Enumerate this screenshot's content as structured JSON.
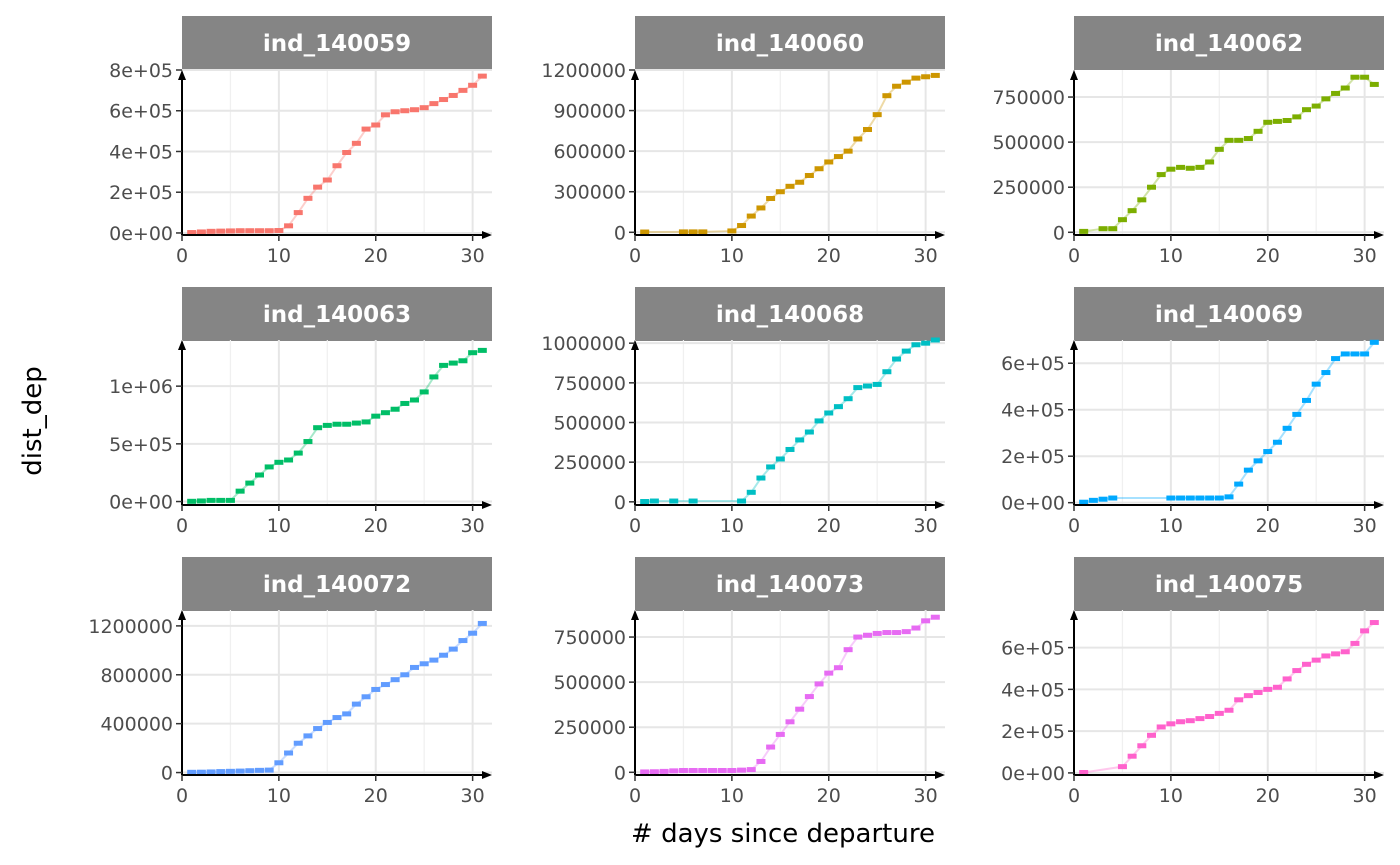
{
  "figure": {
    "xlabel": "# days since departure",
    "ylabel": "dist_dep"
  },
  "chart_data": [
    {
      "type": "line",
      "title": "ind_140059",
      "color": "#F8766D",
      "xlim": [
        0,
        32
      ],
      "ylim": [
        -10000,
        800000
      ],
      "xticks": [
        0,
        10,
        20,
        30
      ],
      "yticks": [
        0,
        200000,
        400000,
        600000,
        800000
      ],
      "ytick_labels": [
        "0e+00",
        "2e+05",
        "4e+05",
        "6e+05",
        "8e+05"
      ],
      "x": [
        1,
        2,
        3,
        4,
        5,
        6,
        7,
        8,
        9,
        10,
        11,
        12,
        13,
        14,
        15,
        16,
        17,
        18,
        19,
        20,
        21,
        22,
        23,
        24,
        25,
        26,
        27,
        28,
        29,
        30,
        31
      ],
      "y": [
        2000,
        5000,
        8000,
        9000,
        10000,
        11000,
        11000,
        11000,
        11000,
        12000,
        35000,
        100000,
        170000,
        225000,
        260000,
        330000,
        395000,
        440000,
        510000,
        530000,
        580000,
        595000,
        600000,
        605000,
        615000,
        635000,
        655000,
        675000,
        700000,
        725000,
        770000
      ]
    },
    {
      "type": "line",
      "title": "ind_140060",
      "color": "#CD9600",
      "xlim": [
        0,
        32
      ],
      "ylim": [
        -20000,
        1200000
      ],
      "xticks": [
        0,
        10,
        20,
        30
      ],
      "yticks": [
        0,
        300000,
        600000,
        900000,
        1200000
      ],
      "ytick_labels": [
        "0",
        "300000",
        "600000",
        "900000",
        "1200000"
      ],
      "x": [
        1,
        5,
        6,
        7,
        10,
        11,
        12,
        13,
        14,
        15,
        16,
        17,
        18,
        19,
        20,
        21,
        22,
        23,
        24,
        25,
        26,
        27,
        28,
        29,
        30,
        31
      ],
      "y": [
        2000,
        3000,
        3000,
        3000,
        10000,
        50000,
        120000,
        180000,
        250000,
        300000,
        340000,
        370000,
        420000,
        470000,
        520000,
        560000,
        600000,
        690000,
        760000,
        870000,
        1010000,
        1080000,
        1110000,
        1140000,
        1150000,
        1160000
      ]
    },
    {
      "type": "line",
      "title": "ind_140062",
      "color": "#7CAE00",
      "xlim": [
        0,
        32
      ],
      "ylim": [
        -15000,
        900000
      ],
      "xticks": [
        0,
        10,
        20,
        30
      ],
      "yticks": [
        0,
        250000,
        500000,
        750000
      ],
      "ytick_labels": [
        "0",
        "250000",
        "500000",
        "750000"
      ],
      "x": [
        1,
        3,
        4,
        5,
        6,
        7,
        8,
        9,
        10,
        11,
        12,
        13,
        14,
        15,
        16,
        17,
        18,
        19,
        20,
        21,
        22,
        23,
        24,
        25,
        26,
        27,
        28,
        29,
        30,
        31
      ],
      "y": [
        5000,
        20000,
        20000,
        70000,
        120000,
        180000,
        250000,
        320000,
        350000,
        360000,
        355000,
        360000,
        390000,
        460000,
        510000,
        510000,
        520000,
        560000,
        610000,
        615000,
        620000,
        640000,
        680000,
        700000,
        740000,
        770000,
        800000,
        860000,
        860000,
        820000
      ]
    },
    {
      "type": "line",
      "title": "ind_140063",
      "color": "#00BE67",
      "xlim": [
        0,
        32
      ],
      "ylim": [
        -30000,
        1400000
      ],
      "xticks": [
        0,
        10,
        20,
        30
      ],
      "yticks": [
        0,
        500000,
        1000000
      ],
      "ytick_labels": [
        "0e+00",
        "5e+05",
        "1e+06"
      ],
      "x": [
        1,
        2,
        3,
        4,
        5,
        6,
        7,
        8,
        9,
        10,
        11,
        12,
        13,
        14,
        15,
        16,
        17,
        18,
        19,
        20,
        21,
        22,
        23,
        24,
        25,
        26,
        27,
        28,
        29,
        30,
        31
      ],
      "y": [
        2000,
        5000,
        10000,
        10000,
        10000,
        90000,
        160000,
        230000,
        300000,
        340000,
        360000,
        420000,
        520000,
        640000,
        660000,
        670000,
        670000,
        680000,
        690000,
        740000,
        770000,
        800000,
        850000,
        880000,
        950000,
        1080000,
        1180000,
        1200000,
        1220000,
        1290000,
        1310000
      ]
    },
    {
      "type": "line",
      "title": "ind_140068",
      "color": "#00BFC4",
      "xlim": [
        0,
        32
      ],
      "ylim": [
        -20000,
        1020000
      ],
      "xticks": [
        0,
        10,
        20,
        30
      ],
      "yticks": [
        0,
        250000,
        500000,
        750000,
        1000000
      ],
      "ytick_labels": [
        "0",
        "250000",
        "500000",
        "750000",
        "1000000"
      ],
      "x": [
        1,
        2,
        4,
        6,
        11,
        12,
        13,
        14,
        15,
        16,
        17,
        18,
        19,
        20,
        21,
        22,
        23,
        24,
        25,
        26,
        27,
        28,
        29,
        30,
        31
      ],
      "y": [
        2000,
        5000,
        5000,
        5000,
        5000,
        60000,
        150000,
        220000,
        270000,
        330000,
        390000,
        440000,
        510000,
        560000,
        600000,
        650000,
        720000,
        730000,
        740000,
        820000,
        900000,
        950000,
        990000,
        1000000,
        1020000
      ]
    },
    {
      "type": "line",
      "title": "ind_140069",
      "color": "#00A9FF",
      "xlim": [
        0,
        32
      ],
      "ylim": [
        -10000,
        700000
      ],
      "xticks": [
        0,
        10,
        20,
        30
      ],
      "yticks": [
        0,
        200000,
        400000,
        600000
      ],
      "ytick_labels": [
        "0e+00",
        "2e+05",
        "4e+05",
        "6e+05"
      ],
      "x": [
        1,
        2,
        3,
        4,
        10,
        11,
        12,
        13,
        14,
        15,
        16,
        17,
        18,
        19,
        20,
        21,
        22,
        23,
        24,
        25,
        26,
        27,
        28,
        29,
        30,
        31
      ],
      "y": [
        2000,
        10000,
        15000,
        20000,
        20000,
        20000,
        20000,
        20000,
        20000,
        20000,
        25000,
        80000,
        140000,
        180000,
        220000,
        260000,
        320000,
        380000,
        440000,
        510000,
        560000,
        620000,
        640000,
        640000,
        640000,
        690000
      ]
    },
    {
      "type": "line",
      "title": "ind_140072",
      "color": "#619CFF",
      "xlim": [
        0,
        32
      ],
      "ylim": [
        -20000,
        1330000
      ],
      "xticks": [
        0,
        10,
        20,
        30
      ],
      "yticks": [
        0,
        400000,
        800000,
        1200000
      ],
      "ytick_labels": [
        "0",
        "400000",
        "800000",
        "1200000"
      ],
      "x": [
        1,
        2,
        3,
        4,
        5,
        6,
        7,
        8,
        9,
        10,
        11,
        12,
        13,
        14,
        15,
        16,
        17,
        18,
        19,
        20,
        21,
        22,
        23,
        24,
        25,
        26,
        27,
        28,
        29,
        30,
        31
      ],
      "y": [
        2000,
        3000,
        5000,
        8000,
        10000,
        12000,
        15000,
        18000,
        20000,
        80000,
        160000,
        240000,
        300000,
        360000,
        410000,
        450000,
        480000,
        560000,
        620000,
        680000,
        720000,
        760000,
        800000,
        860000,
        890000,
        920000,
        960000,
        1010000,
        1080000,
        1140000,
        1220000
      ]
    },
    {
      "type": "line",
      "title": "ind_140073",
      "color": "#E76BF3",
      "xlim": [
        0,
        32
      ],
      "ylim": [
        -15000,
        900000
      ],
      "xticks": [
        0,
        10,
        20,
        30
      ],
      "yticks": [
        0,
        250000,
        500000,
        750000
      ],
      "ytick_labels": [
        "0",
        "250000",
        "500000",
        "750000"
      ],
      "x": [
        1,
        2,
        3,
        4,
        5,
        6,
        7,
        8,
        9,
        10,
        11,
        12,
        13,
        14,
        15,
        16,
        17,
        18,
        19,
        20,
        21,
        22,
        23,
        24,
        25,
        26,
        27,
        28,
        29,
        30,
        31
      ],
      "y": [
        2000,
        3000,
        5000,
        8000,
        10000,
        10000,
        10000,
        10000,
        10000,
        10000,
        12000,
        15000,
        60000,
        140000,
        210000,
        280000,
        350000,
        420000,
        490000,
        550000,
        580000,
        680000,
        750000,
        760000,
        770000,
        775000,
        775000,
        780000,
        800000,
        840000,
        860000
      ]
    },
    {
      "type": "line",
      "title": "ind_140075",
      "color": "#FF61CC",
      "xlim": [
        0,
        32
      ],
      "ylim": [
        -10000,
        780000
      ],
      "xticks": [
        0,
        10,
        20,
        30
      ],
      "yticks": [
        0,
        200000,
        400000,
        600000
      ],
      "ytick_labels": [
        "0e+00",
        "2e+05",
        "4e+05",
        "6e+05"
      ],
      "x": [
        1,
        5,
        6,
        7,
        8,
        9,
        10,
        11,
        12,
        13,
        14,
        15,
        16,
        17,
        18,
        19,
        20,
        21,
        22,
        23,
        24,
        25,
        26,
        27,
        28,
        29,
        30,
        31
      ],
      "y": [
        2000,
        30000,
        80000,
        130000,
        180000,
        220000,
        235000,
        245000,
        250000,
        260000,
        270000,
        285000,
        300000,
        350000,
        370000,
        385000,
        400000,
        410000,
        450000,
        490000,
        520000,
        540000,
        560000,
        570000,
        580000,
        620000,
        680000,
        720000
      ]
    }
  ]
}
